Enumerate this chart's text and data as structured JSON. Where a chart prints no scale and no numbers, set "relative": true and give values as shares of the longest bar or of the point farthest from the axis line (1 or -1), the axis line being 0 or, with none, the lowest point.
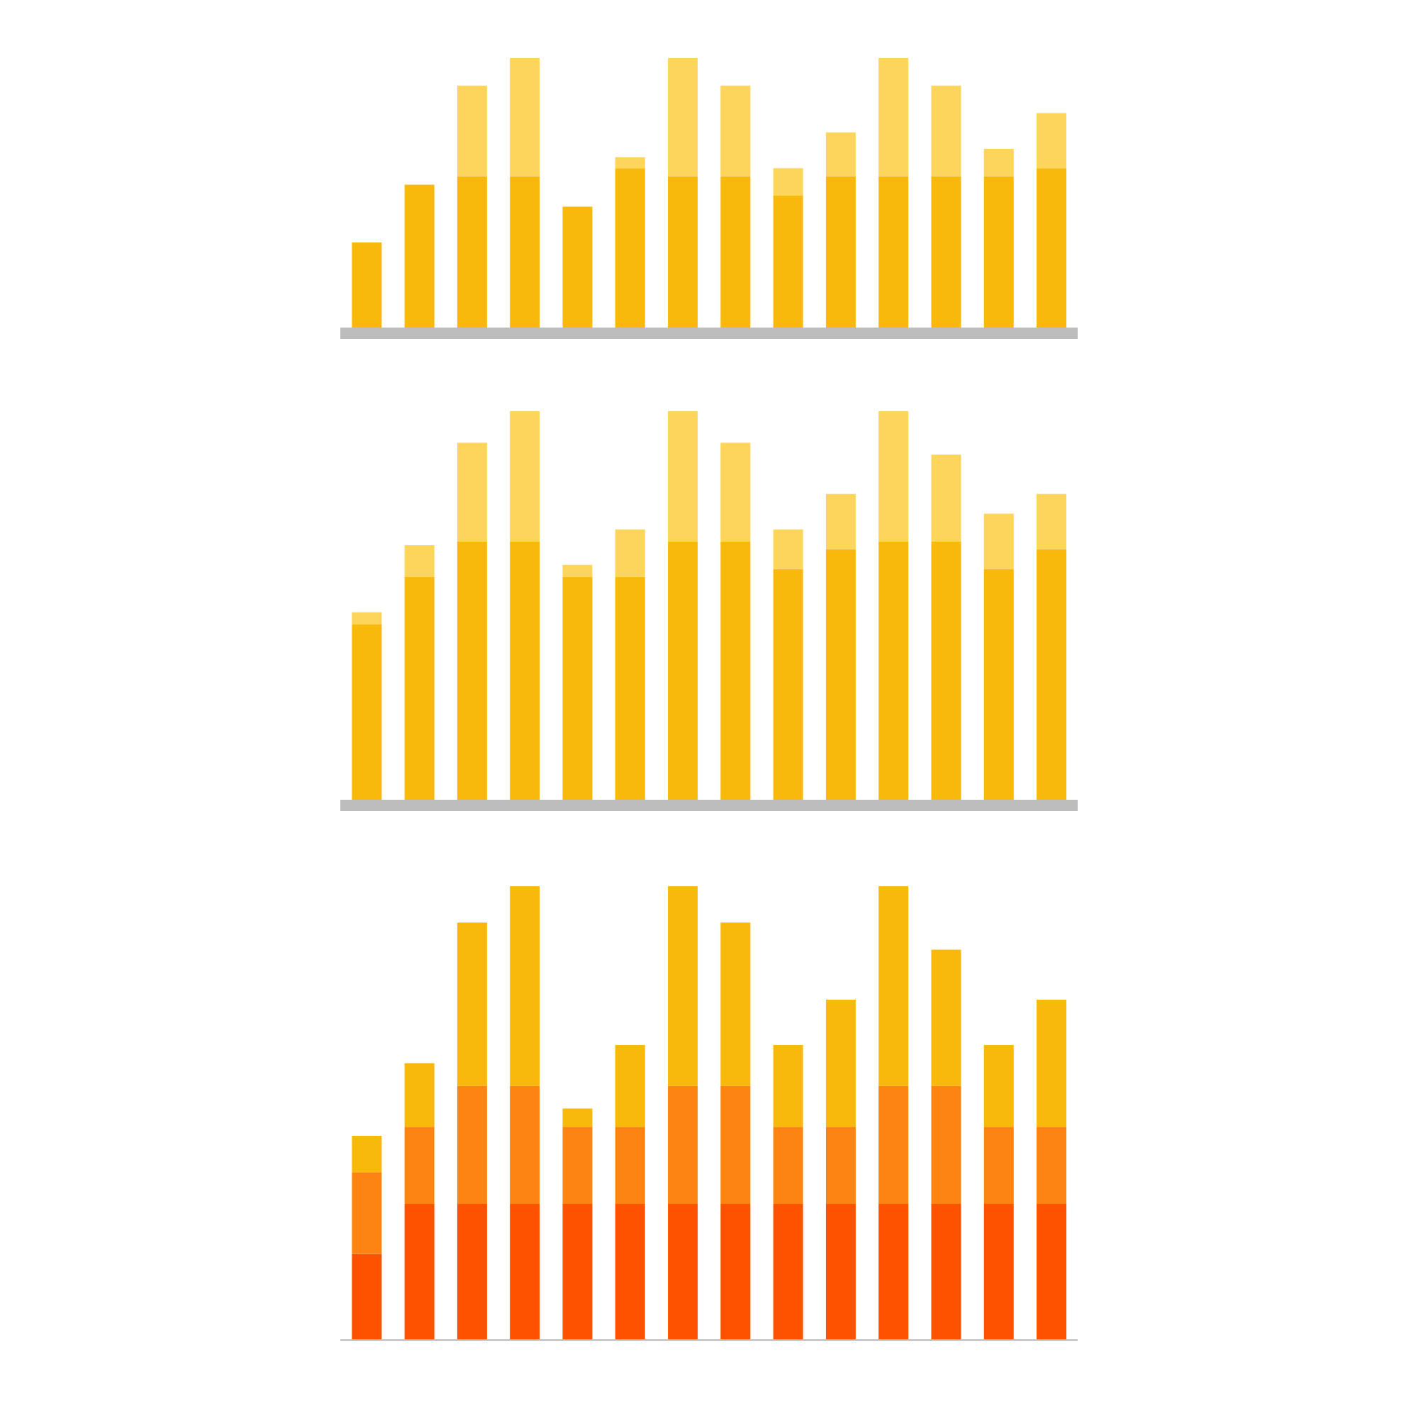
{
  "chart_data": [
    {
      "type": "bar",
      "relative": true,
      "stacked": true,
      "categories": [
        null,
        null,
        null,
        null,
        null,
        null,
        null,
        null,
        null,
        null,
        null,
        null,
        null,
        null
      ],
      "series": [
        {
          "color": "#f9b90b",
          "values": [
            0.33,
            0.54,
            0.57,
            0.57,
            0.46,
            0.6,
            0.57,
            0.57,
            0.5,
            0.57,
            0.57,
            0.57,
            0.57,
            0.6
          ]
        },
        {
          "color": "#fcd55a",
          "values": [
            null,
            null,
            0.33,
            0.43,
            null,
            0.04,
            0.43,
            0.33,
            0.1,
            0.16,
            0.43,
            0.33,
            0.1,
            0.2
          ]
        }
      ]
    },
    {
      "type": "bar",
      "relative": true,
      "stacked": true,
      "categories": [
        null,
        null,
        null,
        null,
        null,
        null,
        null,
        null,
        null,
        null,
        null,
        null,
        null,
        null
      ],
      "series": [
        {
          "color": "#f9b90b",
          "values": [
            0.46,
            0.58,
            0.67,
            0.67,
            0.58,
            0.58,
            0.67,
            0.67,
            0.6,
            0.65,
            0.67,
            0.67,
            0.6,
            0.65
          ]
        },
        {
          "color": "#fcd55a",
          "values": [
            0.03,
            0.08,
            0.25,
            0.33,
            0.03,
            0.12,
            0.33,
            0.25,
            0.1,
            0.14,
            0.33,
            0.22,
            0.14,
            0.14
          ]
        }
      ]
    },
    {
      "type": "bar",
      "relative": true,
      "stacked": true,
      "categories": [
        null,
        null,
        null,
        null,
        null,
        null,
        null,
        null,
        null,
        null,
        null,
        null,
        null,
        null
      ],
      "series": [
        {
          "color": "#fd5300",
          "values": [
            0.19,
            0.3,
            0.3,
            0.3,
            0.3,
            0.3,
            0.3,
            0.3,
            0.3,
            0.3,
            0.3,
            0.3,
            0.3,
            0.3
          ]
        },
        {
          "color": "#fd8410",
          "values": [
            0.18,
            0.17,
            0.26,
            0.26,
            0.17,
            0.17,
            0.26,
            0.26,
            0.17,
            0.17,
            0.26,
            0.26,
            0.17,
            0.17
          ]
        },
        {
          "color": "#f9b90b",
          "values": [
            0.08,
            0.14,
            0.36,
            0.44,
            0.04,
            0.18,
            0.44,
            0.36,
            0.18,
            0.28,
            0.44,
            0.3,
            0.18,
            0.28
          ]
        }
      ]
    }
  ]
}
